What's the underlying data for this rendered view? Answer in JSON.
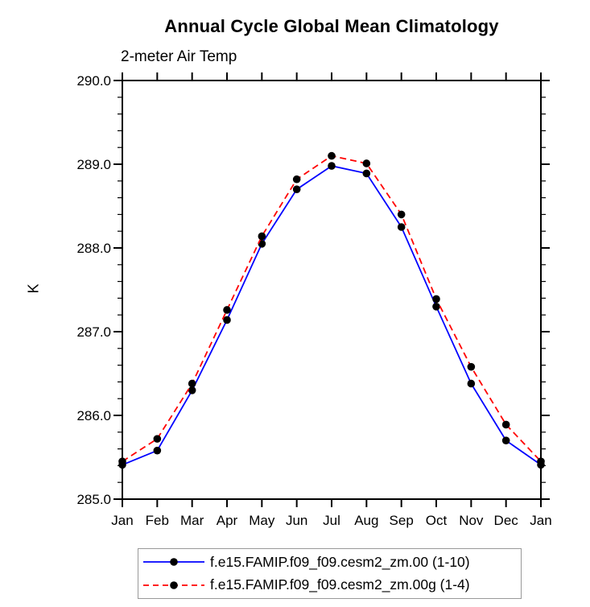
{
  "chart": {
    "title": "Annual Cycle Global Mean Climatology",
    "subtitle": "2-meter Air Temp",
    "ylabel": "K"
  },
  "chart_data": {
    "type": "line",
    "categories": [
      "Jan",
      "Feb",
      "Mar",
      "Apr",
      "May",
      "Jun",
      "Jul",
      "Aug",
      "Sep",
      "Oct",
      "Nov",
      "Dec",
      "Jan"
    ],
    "series": [
      {
        "name": "f.e15.FAMIP.f09_f09.cesm2_zm.00 (1-10)",
        "color": "#0000ff",
        "line_style": "solid",
        "marker": "filled-circle",
        "marker_color": "#000000",
        "values": [
          285.41,
          285.58,
          286.3,
          287.14,
          288.05,
          288.7,
          288.98,
          288.89,
          288.25,
          287.3,
          286.38,
          285.7,
          285.41
        ]
      },
      {
        "name": "f.e15.FAMIP.f09_f09.cesm2_zm.00g (1-4)",
        "color": "#ff0000",
        "line_style": "dashed",
        "marker": "filled-circle",
        "marker_color": "#000000",
        "values": [
          285.45,
          285.72,
          286.38,
          287.26,
          288.14,
          288.82,
          289.1,
          289.01,
          288.4,
          287.39,
          286.58,
          285.89,
          285.45
        ]
      }
    ],
    "title": "Annual Cycle Global Mean Climatology",
    "subtitle": "2-meter Air Temp",
    "xlabel": "",
    "ylabel": "K",
    "ylim": [
      285.0,
      290.0
    ],
    "ytick_interval": 1.0,
    "ytick_minor_interval": 0.2,
    "ytick_labels": [
      "290.0",
      "289.0",
      "288.0",
      "287.0",
      "286.0",
      "285.0"
    ],
    "grid": false,
    "axis_color": "#000000",
    "legend_position": "bottom"
  }
}
